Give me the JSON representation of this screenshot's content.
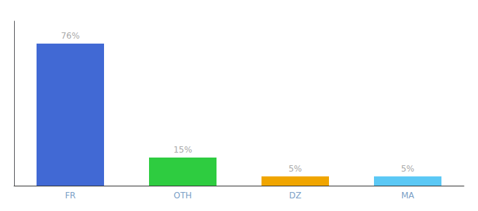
{
  "chart_data": {
    "type": "bar",
    "categories": [
      "FR",
      "OTH",
      "DZ",
      "MA"
    ],
    "values": [
      76,
      15,
      5,
      5
    ],
    "value_labels": [
      "76%",
      "15%",
      "5%",
      "5%"
    ],
    "colors": [
      "#4169d4",
      "#2ecc40",
      "#f0a500",
      "#5bc8f5"
    ],
    "ylim": [
      0,
      88
    ],
    "data_labels": true,
    "tick_labels": "x",
    "grid": false
  }
}
